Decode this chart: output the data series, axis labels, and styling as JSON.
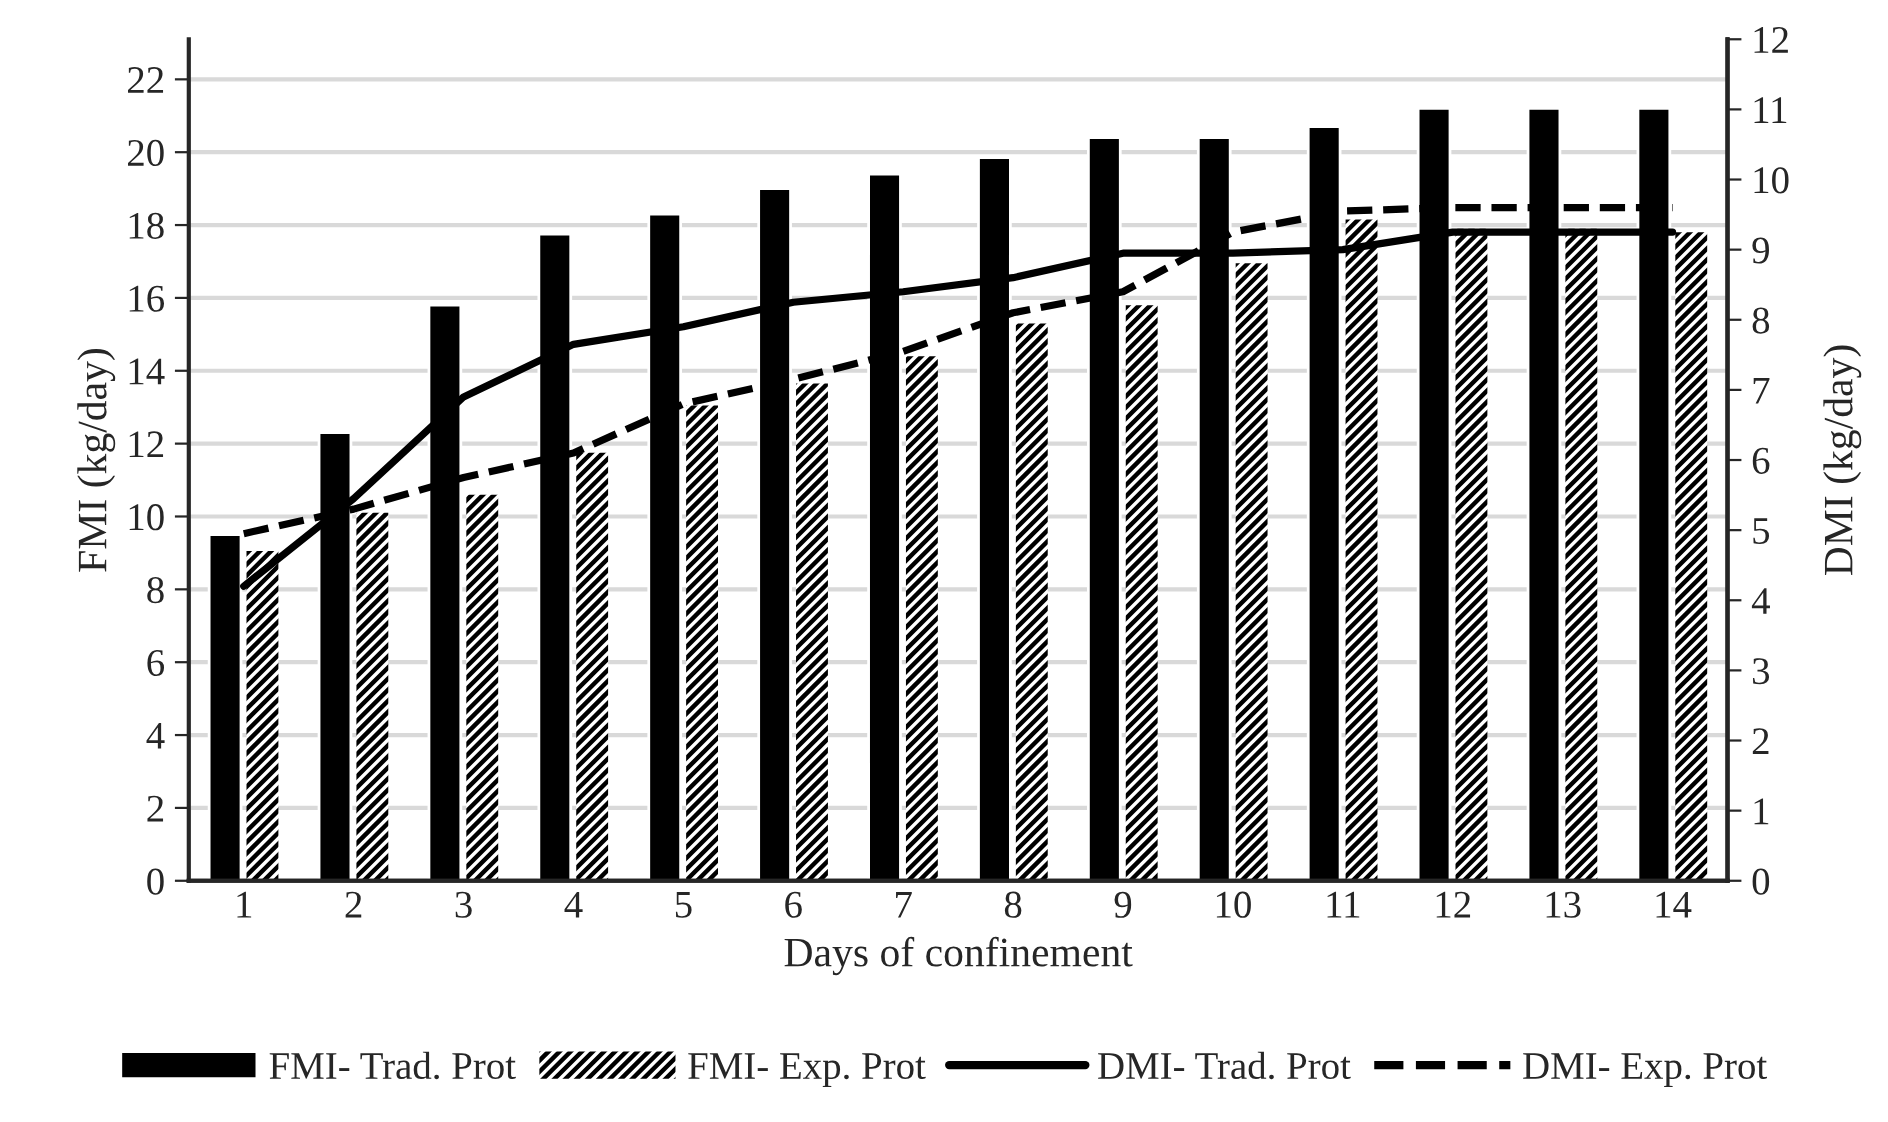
{
  "chart_data": {
    "type": "bar",
    "xlabel": "Days of confinement",
    "ylabel": "FMI (kg/day)",
    "y2label": "DMI (kg/day)",
    "categories": [
      "1",
      "2",
      "3",
      "4",
      "5",
      "6",
      "7",
      "8",
      "9",
      "10",
      "11",
      "12",
      "13",
      "14"
    ],
    "series": [
      {
        "name": "FMI- Trad. Prot",
        "color": "#000000",
        "values": [
          9.5,
          12.3,
          15.8,
          17.75,
          18.3,
          19.0,
          19.4,
          19.85,
          20.4,
          20.4,
          20.7,
          21.2,
          21.2,
          21.2
        ]
      },
      {
        "name": "FMI- Exp. Prot",
        "color": "#000000",
        "values": [
          9.05,
          10.1,
          10.6,
          11.75,
          13.05,
          13.65,
          14.4,
          15.3,
          15.8,
          16.95,
          18.15,
          17.9,
          17.9,
          17.8
        ]
      },
      {
        "name": "DMI- Trad. Prot",
        "type": "line",
        "axis": "y2",
        "line_style": "solid",
        "color": "#000000",
        "values": [
          4.2,
          5.45,
          6.9,
          7.65,
          7.9,
          8.25,
          8.4,
          8.6,
          8.95,
          8.95,
          9.0,
          9.25,
          9.25,
          9.25
        ]
      },
      {
        "name": "DMI- Exp. Prot",
        "type": "line",
        "axis": "y2",
        "line_style": "dashed",
        "color": "#000000",
        "values": [
          4.95,
          5.3,
          5.75,
          6.1,
          6.8,
          7.15,
          7.55,
          8.1,
          8.4,
          9.25,
          9.55,
          9.6,
          9.6,
          9.6
        ]
      }
    ],
    "ylim": [
      0,
      23.1
    ],
    "yticks": [
      0,
      2,
      4,
      6,
      8,
      10,
      12,
      14,
      16,
      18,
      20,
      22
    ],
    "y2lim": [
      0,
      12
    ],
    "y2ticks": [
      0,
      1,
      2,
      3,
      4,
      5,
      6,
      7,
      8,
      9,
      10,
      11,
      12
    ],
    "grid": "y",
    "legend": "bottom"
  }
}
